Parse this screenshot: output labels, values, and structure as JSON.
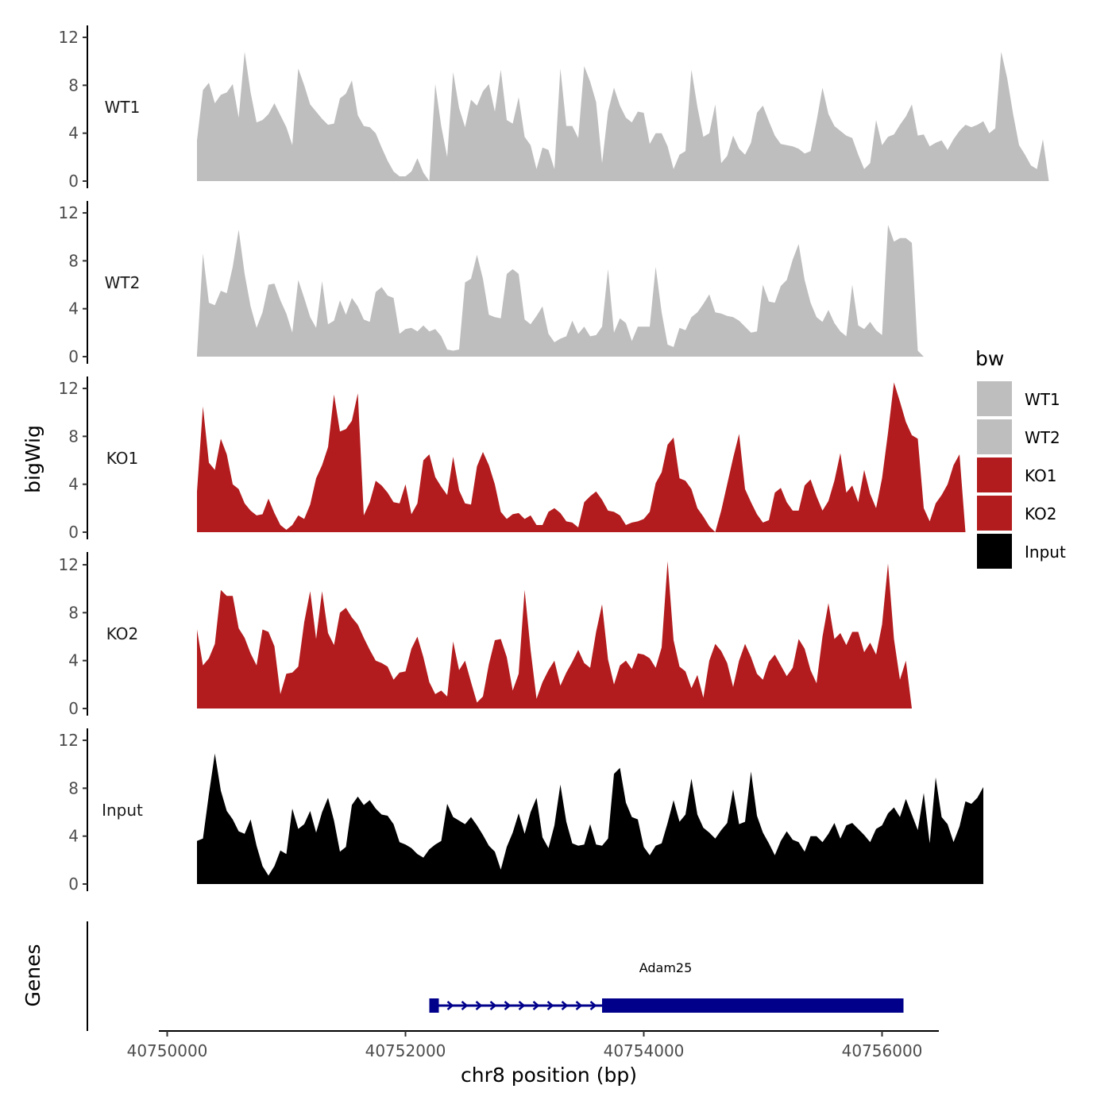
{
  "chart_data": {
    "type": "area",
    "title": "",
    "xlabel": "chr8 position (bp)",
    "ylabel": "bigWig",
    "genes_label": "Genes",
    "xlim": [
      40749900,
      40756500
    ],
    "xticks": [
      40750000,
      40752000,
      40754000,
      40756000
    ],
    "xtick_labels": [
      "40750000",
      "40752000",
      "40754000",
      "40756000"
    ],
    "ylim": [
      0,
      12.5
    ],
    "yticks": [
      0,
      4,
      8,
      12
    ],
    "ytick_labels": [
      "0",
      "4",
      "8",
      "12"
    ],
    "legend": {
      "title": "bw",
      "position": "right"
    },
    "x_start": 40750250,
    "x_step": 50,
    "series": [
      {
        "name": "WT1",
        "color": "#bebebe",
        "values": [
          3.4,
          7.6,
          8.2,
          6.5,
          7.2,
          7.4,
          8.1,
          5.3,
          10.8,
          7.4,
          4.9,
          5.1,
          5.6,
          6.5,
          5.5,
          4.5,
          3.0,
          9.4,
          8.0,
          6.4,
          5.8,
          5.2,
          4.7,
          4.8,
          6.9,
          7.3,
          8.4,
          5.5,
          4.6,
          4.5,
          4.0,
          2.8,
          1.7,
          0.8,
          0.4,
          0.4,
          0.8,
          1.9,
          0.7,
          0.0,
          8.1,
          4.6,
          2.0,
          9.1,
          6.1,
          4.5,
          6.8,
          6.3,
          7.5,
          8.1,
          5.8,
          9.3,
          5.1,
          4.8,
          7.0,
          3.7,
          3.0,
          1.0,
          2.8,
          2.6,
          1.0,
          9.4,
          4.6,
          4.6,
          3.6,
          9.6,
          8.3,
          6.6,
          1.5,
          5.8,
          7.8,
          6.3,
          5.3,
          4.9,
          5.8,
          5.7,
          3.1,
          4.0,
          4.0,
          2.9,
          1.0,
          2.2,
          2.5,
          9.3,
          6.2,
          3.7,
          4.0,
          6.4,
          1.5,
          2.1,
          3.8,
          2.7,
          2.2,
          3.2,
          5.7,
          6.3,
          5.0,
          3.8,
          3.1,
          3.0,
          2.9,
          2.7,
          2.3,
          2.5,
          5.0,
          7.8,
          5.6,
          4.6,
          4.2,
          3.8,
          3.6,
          2.2,
          1.0,
          1.5,
          5.1,
          3.0,
          3.7,
          3.9,
          4.7,
          5.4,
          6.4,
          3.8,
          3.9,
          2.9,
          3.2,
          3.4,
          2.6,
          3.5,
          4.2,
          4.7,
          4.5,
          4.7,
          5.0,
          4.0,
          4.4,
          10.8,
          8.6,
          5.6,
          3.0,
          2.2,
          1.3,
          1.0,
          3.5,
          0.0
        ]
      },
      {
        "name": "WT2",
        "color": "#bebebe",
        "values": [
          0.2,
          8.6,
          4.5,
          4.3,
          5.5,
          5.3,
          7.5,
          10.6,
          6.9,
          4.2,
          2.4,
          3.7,
          6.0,
          6.1,
          4.7,
          3.6,
          2.0,
          6.4,
          4.9,
          3.3,
          2.4,
          6.3,
          2.7,
          3.0,
          4.7,
          3.5,
          4.9,
          4.2,
          3.1,
          2.9,
          5.4,
          5.8,
          5.1,
          4.9,
          1.9,
          2.3,
          2.4,
          2.1,
          2.6,
          2.1,
          2.3,
          1.7,
          0.6,
          0.5,
          0.6,
          6.2,
          6.5,
          8.5,
          6.5,
          3.5,
          3.3,
          3.2,
          6.9,
          7.3,
          6.9,
          3.1,
          2.7,
          3.4,
          4.2,
          1.9,
          1.2,
          1.5,
          1.7,
          3.0,
          1.9,
          2.5,
          1.7,
          1.8,
          2.5,
          7.3,
          2.0,
          3.2,
          2.8,
          1.3,
          2.5,
          2.5,
          2.5,
          7.5,
          3.7,
          1.0,
          0.8,
          2.4,
          2.2,
          3.3,
          3.7,
          4.4,
          5.2,
          3.7,
          3.6,
          3.4,
          3.3,
          3.0,
          2.5,
          2.0,
          2.1,
          6.0,
          4.6,
          4.5,
          5.9,
          6.4,
          8.1,
          9.4,
          6.4,
          4.5,
          3.3,
          2.9,
          3.9,
          2.8,
          2.1,
          1.7,
          6.0,
          2.6,
          2.3,
          2.9,
          2.2,
          1.8,
          11.0,
          9.6,
          9.9,
          9.9,
          9.5,
          0.5,
          0.0,
          0.0,
          0.0,
          0.0,
          0.0,
          0.0,
          0.0,
          0.0,
          0.0,
          0.0,
          0.0,
          0.0,
          0.0,
          0.0,
          0.0,
          0.0,
          0.0,
          0.0,
          0.0
        ]
      },
      {
        "name": "KO1",
        "color": "#b21c1e",
        "values": [
          3.4,
          10.5,
          5.8,
          5.2,
          7.8,
          6.5,
          4.0,
          3.6,
          2.4,
          1.8,
          1.4,
          1.5,
          2.8,
          1.6,
          0.6,
          0.2,
          0.6,
          1.4,
          1.1,
          2.3,
          4.5,
          5.6,
          7.1,
          11.5,
          8.4,
          8.6,
          9.3,
          11.6,
          1.4,
          2.5,
          4.3,
          3.9,
          3.3,
          2.5,
          2.4,
          4.0,
          1.5,
          2.4,
          6.0,
          6.5,
          4.6,
          3.8,
          3.1,
          6.3,
          3.5,
          2.4,
          2.3,
          5.5,
          6.7,
          5.6,
          4.0,
          1.7,
          1.1,
          1.5,
          1.6,
          1.1,
          1.4,
          0.6,
          0.6,
          1.7,
          2.0,
          1.6,
          0.9,
          0.8,
          0.4,
          2.5,
          3.0,
          3.4,
          2.7,
          1.8,
          1.7,
          1.4,
          0.6,
          0.8,
          0.9,
          1.1,
          1.7,
          4.1,
          5.0,
          7.3,
          7.9,
          4.5,
          4.3,
          3.6,
          2.0,
          1.3,
          0.5,
          0.0,
          1.8,
          4.0,
          6.2,
          8.2,
          3.6,
          2.5,
          1.5,
          0.8,
          1.0,
          3.3,
          3.7,
          2.5,
          1.8,
          1.8,
          3.9,
          4.4,
          3.0,
          1.8,
          2.6,
          4.3,
          6.6,
          3.3,
          3.9,
          2.5,
          5.2,
          3.2,
          2.0,
          4.5,
          8.3,
          12.6,
          10.9,
          9.2,
          8.1,
          7.8,
          2.0,
          0.9,
          2.4,
          3.1,
          4.0,
          5.6,
          6.5,
          0.0,
          0.0,
          0.0,
          0.0,
          0.0,
          0.0,
          0.0,
          0.0,
          0.0,
          0.0,
          0.0
        ]
      },
      {
        "name": "KO2",
        "color": "#b21c1e",
        "values": [
          6.6,
          3.6,
          4.2,
          5.4,
          9.9,
          9.4,
          9.4,
          6.7,
          5.9,
          4.6,
          3.6,
          6.6,
          6.4,
          5.2,
          1.2,
          2.9,
          3.0,
          3.5,
          7.2,
          9.8,
          5.8,
          9.8,
          6.3,
          5.3,
          8.0,
          8.4,
          7.6,
          7.0,
          5.9,
          4.9,
          4.0,
          3.8,
          3.5,
          2.4,
          3.0,
          3.1,
          5.0,
          6.0,
          4.3,
          2.2,
          1.2,
          1.5,
          1.0,
          5.6,
          3.2,
          4.0,
          2.2,
          0.5,
          1.0,
          3.7,
          5.7,
          5.8,
          4.3,
          1.5,
          2.9,
          9.9,
          4.9,
          0.8,
          2.2,
          3.2,
          4.0,
          1.9,
          3.0,
          3.9,
          4.9,
          3.8,
          3.4,
          6.4,
          8.7,
          4.1,
          2.0,
          3.6,
          4.0,
          3.3,
          4.6,
          4.5,
          4.2,
          3.4,
          5.1,
          12.3,
          5.7,
          3.5,
          3.1,
          1.7,
          2.8,
          0.9,
          4.0,
          5.4,
          4.8,
          3.8,
          1.8,
          4.0,
          5.4,
          4.3,
          2.9,
          2.4,
          3.9,
          4.5,
          3.6,
          2.7,
          3.4,
          5.8,
          5.0,
          3.2,
          2.1,
          6.0,
          8.8,
          5.8,
          6.3,
          5.3,
          6.4,
          6.4,
          4.7,
          5.5,
          4.5,
          7.0,
          12.1,
          5.8,
          2.4,
          4.0,
          0.0,
          0.0,
          0.0,
          0.0,
          0.0,
          0.0,
          0.0,
          0.0,
          0.0,
          0.0,
          0.0,
          0.0,
          0.0,
          0.0,
          0.0,
          0.0,
          0.0,
          0.0,
          0.0,
          0.0
        ]
      },
      {
        "name": "Input",
        "color": "#000000",
        "values": [
          3.6,
          3.8,
          7.5,
          10.9,
          7.8,
          6.1,
          5.4,
          4.4,
          4.2,
          5.4,
          3.2,
          1.5,
          0.7,
          1.5,
          2.8,
          2.5,
          6.3,
          4.6,
          5.0,
          6.1,
          4.3,
          6.0,
          7.2,
          5.3,
          2.7,
          3.1,
          6.6,
          7.3,
          6.6,
          7.0,
          6.3,
          5.8,
          5.7,
          5.0,
          3.5,
          3.3,
          3.0,
          2.5,
          2.2,
          2.9,
          3.3,
          3.6,
          6.7,
          5.6,
          5.3,
          5.0,
          5.6,
          4.9,
          4.1,
          3.2,
          2.7,
          1.2,
          3.1,
          4.3,
          5.9,
          4.2,
          6.0,
          7.2,
          3.9,
          3.0,
          4.9,
          8.3,
          5.2,
          3.4,
          3.2,
          3.3,
          5.0,
          3.3,
          3.2,
          3.8,
          9.2,
          9.7,
          6.8,
          5.6,
          5.4,
          3.1,
          2.4,
          3.2,
          3.4,
          5.1,
          7.0,
          5.2,
          5.8,
          8.8,
          5.8,
          4.7,
          4.3,
          3.8,
          4.5,
          5.1,
          7.9,
          5.0,
          5.2,
          9.4,
          5.7,
          4.3,
          3.4,
          2.4,
          3.6,
          4.4,
          3.7,
          3.5,
          2.7,
          4.0,
          4.0,
          3.5,
          4.2,
          5.1,
          3.8,
          4.9,
          5.1,
          4.6,
          4.1,
          3.5,
          4.6,
          4.9,
          5.9,
          6.4,
          5.6,
          7.1,
          5.8,
          4.5,
          7.6,
          3.4,
          8.9,
          5.6,
          5.0,
          3.5,
          4.8,
          6.9,
          6.7,
          7.2,
          8.1
        ]
      }
    ],
    "genes": [
      {
        "name": "Adam25",
        "start": 40752200,
        "end": 40756180,
        "strand": "+",
        "exons": [
          [
            40752200,
            40752280
          ],
          [
            40753650,
            40756180
          ]
        ],
        "color": "#00008b"
      }
    ]
  }
}
